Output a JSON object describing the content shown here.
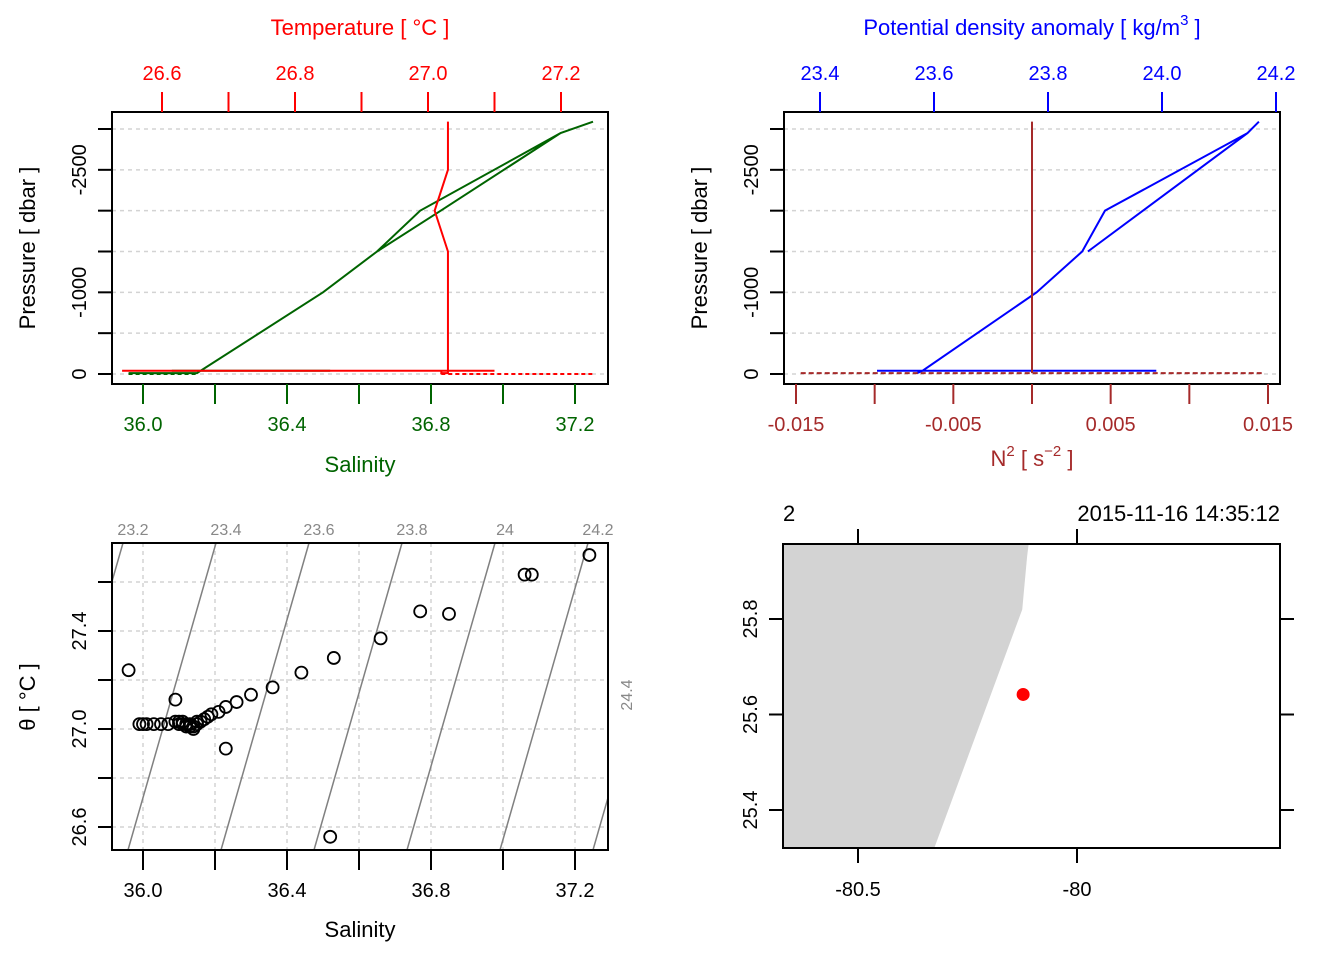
{
  "chart_data": [
    {
      "id": "profile-salinity-temperature",
      "type": "line",
      "title": "",
      "xlabel": "Salinity",
      "x2label": "Temperature [ °C ]",
      "ylabel": "Pressure [ dbar ]",
      "xlim": [
        35.91,
        37.3
      ],
      "x2lim": [
        26.54,
        27.29
      ],
      "ylim": [
        -3000,
        0
      ],
      "x_ticks": [
        36.0,
        36.2,
        36.4,
        36.6,
        36.8,
        37.0,
        37.2
      ],
      "x_tick_labels": [
        "36.0",
        "",
        "36.4",
        "",
        "36.8",
        "",
        "37.2"
      ],
      "x2_ticks": [
        26.6,
        26.7,
        26.8,
        26.9,
        27.0,
        27.1,
        27.2
      ],
      "x2_tick_labels": [
        "26.6",
        "",
        "26.8",
        "",
        "27.0",
        "",
        "27.2"
      ],
      "y_ticks": [
        0,
        -500,
        -1000,
        -1500,
        -2000,
        -2500,
        -3000
      ],
      "y_tick_labels": [
        "0",
        "",
        "-1000",
        "",
        "",
        "-2500",
        ""
      ],
      "grid": true,
      "colors": {
        "salinity": "#006400",
        "temperature": "#ff0000",
        "grid": "#d3d3d3"
      },
      "series": [
        {
          "name": "Salinity",
          "axis": "x",
          "points": [
            [
              35.96,
              -10
            ],
            [
              36.15,
              -10
            ],
            [
              36.16,
              -40
            ],
            [
              36.08,
              -40
            ],
            [
              36.52,
              -40
            ],
            [
              36.16,
              -40
            ],
            [
              36.5,
              -1000
            ],
            [
              36.65,
              -1500
            ],
            [
              36.77,
              -2000
            ],
            [
              37.16,
              -2950
            ],
            [
              37.25,
              -3090
            ],
            [
              37.16,
              -2950
            ],
            [
              36.82,
              -1980
            ],
            [
              36.65,
              -1500
            ]
          ]
        },
        {
          "name": "Temperature",
          "axis": "x2",
          "points": [
            [
              26.54,
              -40
            ],
            [
              27.1,
              -40
            ],
            [
              27.02,
              -40
            ],
            [
              27.02,
              -10
            ],
            [
              27.03,
              -10
            ],
            [
              27.03,
              -1500
            ],
            [
              27.01,
              -2000
            ],
            [
              27.03,
              -2500
            ],
            [
              27.03,
              -3090
            ]
          ]
        }
      ]
    },
    {
      "id": "profile-density-n2",
      "type": "line",
      "xlabel": "N² [ s⁻² ]",
      "xlabel_main": "N",
      "xlabel_sup": "2",
      "xlabel_tail_open": " [ s",
      "xlabel_tail_sup": "−2",
      "xlabel_tail_close": " ]",
      "x2label": "Potential density anomaly [ kg/m",
      "x2label_sup": "3",
      "x2label_close": " ]",
      "ylabel": "Pressure [ dbar ]",
      "xlim": [
        -0.0157,
        0.0157
      ],
      "x2lim": [
        23.33,
        24.21
      ],
      "ylim": [
        -3000,
        0
      ],
      "x_ticks": [
        -0.015,
        -0.01,
        -0.005,
        0,
        0.005,
        0.01,
        0.015
      ],
      "x_tick_labels": [
        "-0.015",
        "",
        "-0.005",
        "",
        "0.005",
        "",
        "0.015"
      ],
      "x2_ticks": [
        23.4,
        23.6,
        23.8,
        24.0,
        24.2
      ],
      "x2_tick_labels": [
        "23.4",
        "23.6",
        "23.8",
        "24.0",
        "24.2"
      ],
      "y_ticks": [
        0,
        -500,
        -1000,
        -1500,
        -2000,
        -2500,
        -3000
      ],
      "y_tick_labels": [
        "0",
        "",
        "-1000",
        "",
        "",
        "-2500",
        ""
      ],
      "grid": true,
      "colors": {
        "density": "#0000ff",
        "n2": "#a52a2a",
        "grid": "#d3d3d3"
      },
      "series": [
        {
          "name": "Potential density anomaly",
          "axis": "x2",
          "points": [
            [
              23.5,
              -40
            ],
            [
              23.58,
              -40
            ],
            [
              23.99,
              -40
            ],
            [
              23.58,
              -40
            ],
            [
              23.57,
              -10
            ],
            [
              23.58,
              -40
            ],
            [
              23.78,
              -1000
            ],
            [
              23.86,
              -1500
            ],
            [
              23.9,
              -2000
            ],
            [
              24.15,
              -2950
            ],
            [
              24.17,
              -3090
            ],
            [
              24.15,
              -2950
            ],
            [
              23.87,
              -1500
            ]
          ]
        },
        {
          "name": "N2",
          "axis": "x",
          "points": [
            [
              0.0,
              -3090
            ],
            [
              0.0,
              -10
            ]
          ]
        },
        {
          "name": "N2 surface",
          "axis": "x",
          "dashed": true,
          "points": [
            [
              -0.0147,
              -10
            ],
            [
              0.0147,
              -10
            ]
          ]
        }
      ]
    },
    {
      "id": "ts-diagram",
      "type": "scatter",
      "xlabel": "Salinity",
      "ylabel": "θ [ °C ]",
      "xlim": [
        35.91,
        37.3
      ],
      "ylim": [
        26.53,
        27.78
      ],
      "x_ticks": [
        36.0,
        36.2,
        36.4,
        36.6,
        36.8,
        37.0,
        37.2
      ],
      "x_tick_labels": [
        "36.0",
        "",
        "36.4",
        "",
        "36.8",
        "",
        "37.2"
      ],
      "y_ticks": [
        26.6,
        26.8,
        27.0,
        27.2,
        27.4,
        27.6
      ],
      "y_tick_labels": [
        "26.6",
        "",
        "27.0",
        "",
        "27.4",
        ""
      ],
      "grid": true,
      "isopycnal_labels": [
        "23.2",
        "23.4",
        "23.6",
        "23.8",
        "24",
        "24.2",
        "24.4"
      ],
      "isopycnals": [
        23.2,
        23.4,
        23.6,
        23.8,
        24.0,
        24.2,
        24.4
      ],
      "colors": {
        "points": "#000000",
        "isopycnal": "#808080",
        "isopycnal_label": "#888888",
        "grid": "#d3d3d3"
      },
      "points": [
        [
          35.96,
          27.24
        ],
        [
          35.99,
          27.02
        ],
        [
          36.0,
          27.02
        ],
        [
          36.01,
          27.02
        ],
        [
          36.03,
          27.02
        ],
        [
          36.05,
          27.02
        ],
        [
          36.07,
          27.02
        ],
        [
          36.09,
          27.12
        ],
        [
          36.09,
          27.03
        ],
        [
          36.1,
          27.03
        ],
        [
          36.1,
          27.02
        ],
        [
          36.11,
          27.02
        ],
        [
          36.11,
          27.03
        ],
        [
          36.12,
          27.01
        ],
        [
          36.12,
          27.02
        ],
        [
          36.13,
          27.02
        ],
        [
          36.13,
          27.01
        ],
        [
          36.14,
          27.01
        ],
        [
          36.14,
          27.0
        ],
        [
          36.15,
          27.02
        ],
        [
          36.15,
          27.03
        ],
        [
          36.16,
          27.03
        ],
        [
          36.17,
          27.04
        ],
        [
          36.18,
          27.05
        ],
        [
          36.19,
          27.06
        ],
        [
          36.21,
          27.07
        ],
        [
          36.23,
          27.09
        ],
        [
          36.23,
          26.92
        ],
        [
          36.26,
          27.11
        ],
        [
          36.3,
          27.14
        ],
        [
          36.36,
          27.17
        ],
        [
          36.44,
          27.23
        ],
        [
          36.53,
          27.29
        ],
        [
          36.52,
          26.56
        ],
        [
          36.66,
          27.37
        ],
        [
          36.77,
          27.48
        ],
        [
          36.85,
          27.47
        ],
        [
          37.06,
          27.63
        ],
        [
          37.08,
          27.63
        ],
        [
          37.24,
          27.71
        ]
      ]
    },
    {
      "id": "station-map",
      "type": "scatter",
      "top_left_label": "2",
      "top_right_label": "2015-11-16 14:35:12",
      "xlim": [
        -80.67,
        -79.54
      ],
      "ylim": [
        25.32,
        25.96
      ],
      "x_ticks": [
        -80.5,
        -80.0
      ],
      "x_tick_labels": [
        "-80.5",
        "-80"
      ],
      "y_ticks": [
        25.4,
        25.6,
        25.8
      ],
      "y_tick_labels": [
        "25.4",
        "25.6",
        "25.8"
      ],
      "coastline": [
        [
          -80.67,
          25.96
        ],
        [
          -80.11,
          25.96
        ],
        [
          -80.114,
          25.93
        ],
        [
          -80.125,
          25.82
        ],
        [
          -80.326,
          25.32
        ],
        [
          -80.67,
          25.32
        ]
      ],
      "station": {
        "lon": -80.123,
        "lat": 25.642
      },
      "colors": {
        "land": "#d3d3d3",
        "station": "#ff0000"
      }
    }
  ]
}
